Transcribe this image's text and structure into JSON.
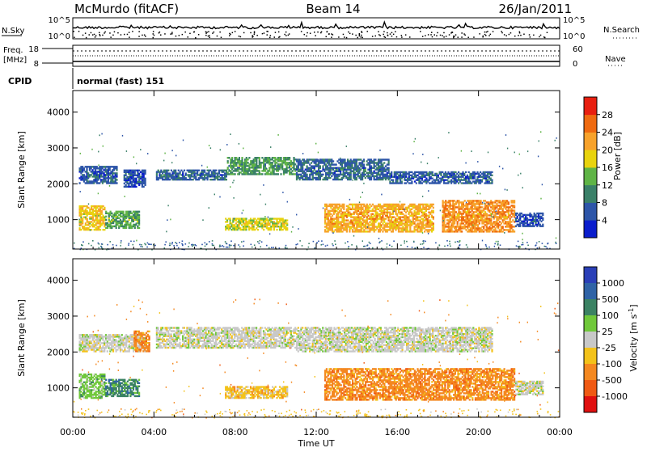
{
  "header": {
    "station": "McMurdo (fitACF)",
    "beam": "Beam 14",
    "date": "26/Jan/2011"
  },
  "noise_panel": {
    "left_label": "N.Sky",
    "right_label": "N.Search",
    "left_ticks": [
      "10^5",
      "10^0"
    ],
    "right_ticks": [
      "10^5",
      "10^0"
    ]
  },
  "freq_panel": {
    "left_label_line1": "Freq.",
    "left_label_line2": "[MHz]",
    "right_label": "Nave",
    "left_ticks": [
      "18",
      "8"
    ],
    "right_ticks": [
      "60",
      "0"
    ]
  },
  "cpid_panel": {
    "label": "CPID",
    "mode_text": "normal (fast) 151"
  },
  "x_axis": {
    "label": "Time UT",
    "ticks": [
      "00:00",
      "04:00",
      "08:00",
      "12:00",
      "16:00",
      "20:00",
      "00:00"
    ],
    "range_hours": [
      0,
      24
    ]
  },
  "colors": {
    "power_scale": [
      "#0a1dcc",
      "#2d55a8",
      "#3a8068",
      "#5fb446",
      "#e8d30e",
      "#f7a22b",
      "#ef6a10",
      "#e81f10"
    ],
    "velocity_scale": [
      "#2a3fb7",
      "#2f63a6",
      "#3b8263",
      "#70c83a",
      "#c8c8c8",
      "#f3c21a",
      "#f48820",
      "#f05a14",
      "#e01010"
    ],
    "frame": "#000000"
  },
  "chart_data": [
    {
      "type": "heatmap",
      "title": "Power",
      "ylabel": "Slant Range [km]",
      "xlabel": "",
      "ylim": [
        180,
        4600
      ],
      "y_ticks": [
        "1000",
        "2000",
        "3000",
        "4000"
      ],
      "y_tick_values": [
        1000,
        2000,
        3000,
        4000
      ],
      "colorbar": {
        "label": "Power [dB]",
        "ticks": [
          "4",
          "8",
          "12",
          "16",
          "20",
          "24",
          "28"
        ],
        "range": [
          0,
          30
        ]
      },
      "bands": [
        {
          "t0": 0.3,
          "t1": 1.6,
          "r0": 700,
          "r1": 1400,
          "level": 18
        },
        {
          "t0": 1.6,
          "t1": 3.3,
          "r0": 750,
          "r1": 1250,
          "level": 12
        },
        {
          "t0": 0.3,
          "t1": 2.2,
          "r0": 2000,
          "r1": 2500,
          "level": 6
        },
        {
          "t0": 2.5,
          "t1": 3.6,
          "r0": 1900,
          "r1": 2400,
          "level": 5
        },
        {
          "t0": 4.1,
          "t1": 7.6,
          "r0": 2100,
          "r1": 2400,
          "level": 7
        },
        {
          "t0": 7.6,
          "t1": 11.0,
          "r0": 2250,
          "r1": 2750,
          "level": 11
        },
        {
          "t0": 7.5,
          "t1": 10.6,
          "r0": 700,
          "r1": 1050,
          "level": 16
        },
        {
          "t0": 11.0,
          "t1": 15.6,
          "r0": 2100,
          "r1": 2700,
          "level": 7
        },
        {
          "t0": 15.6,
          "t1": 20.7,
          "r0": 2000,
          "r1": 2350,
          "level": 6
        },
        {
          "t0": 12.4,
          "t1": 17.8,
          "r0": 650,
          "r1": 1450,
          "level": 20
        },
        {
          "t0": 18.2,
          "t1": 21.8,
          "r0": 650,
          "r1": 1550,
          "level": 22
        },
        {
          "t0": 21.8,
          "t1": 23.2,
          "r0": 800,
          "r1": 1200,
          "level": 5
        }
      ]
    },
    {
      "type": "heatmap",
      "title": "Velocity",
      "ylabel": "Slant Range [km]",
      "xlabel": "Time UT",
      "ylim": [
        180,
        4600
      ],
      "y_ticks": [
        "1000",
        "2000",
        "3000",
        "4000"
      ],
      "y_tick_values": [
        1000,
        2000,
        3000,
        4000
      ],
      "colorbar": {
        "label": "Velocity [m s",
        "label_superscript": "-1",
        "label_end": "]",
        "ticks": [
          "1000",
          "500",
          "100",
          "25",
          "-25",
          "-100",
          "-500",
          "-1000"
        ]
      },
      "bands": [
        {
          "t0": 0.3,
          "t1": 1.6,
          "r0": 700,
          "r1": 1400,
          "level": 3
        },
        {
          "t0": 1.6,
          "t1": 3.3,
          "r0": 750,
          "r1": 1250,
          "level": 2
        },
        {
          "t0": 0.3,
          "t1": 3.6,
          "r0": 2000,
          "r1": 2500,
          "level": 4
        },
        {
          "t0": 3.0,
          "t1": 3.8,
          "r0": 2000,
          "r1": 2600,
          "level": 6
        },
        {
          "t0": 4.1,
          "t1": 11.0,
          "r0": 2100,
          "r1": 2700,
          "level": 4
        },
        {
          "t0": 7.5,
          "t1": 10.6,
          "r0": 700,
          "r1": 1050,
          "level": 5
        },
        {
          "t0": 11.0,
          "t1": 20.7,
          "r0": 2000,
          "r1": 2700,
          "level": 4
        },
        {
          "t0": 12.4,
          "t1": 21.8,
          "r0": 650,
          "r1": 1550,
          "level": 6
        },
        {
          "t0": 21.8,
          "t1": 23.2,
          "r0": 800,
          "r1": 1200,
          "level": 4
        }
      ]
    }
  ]
}
